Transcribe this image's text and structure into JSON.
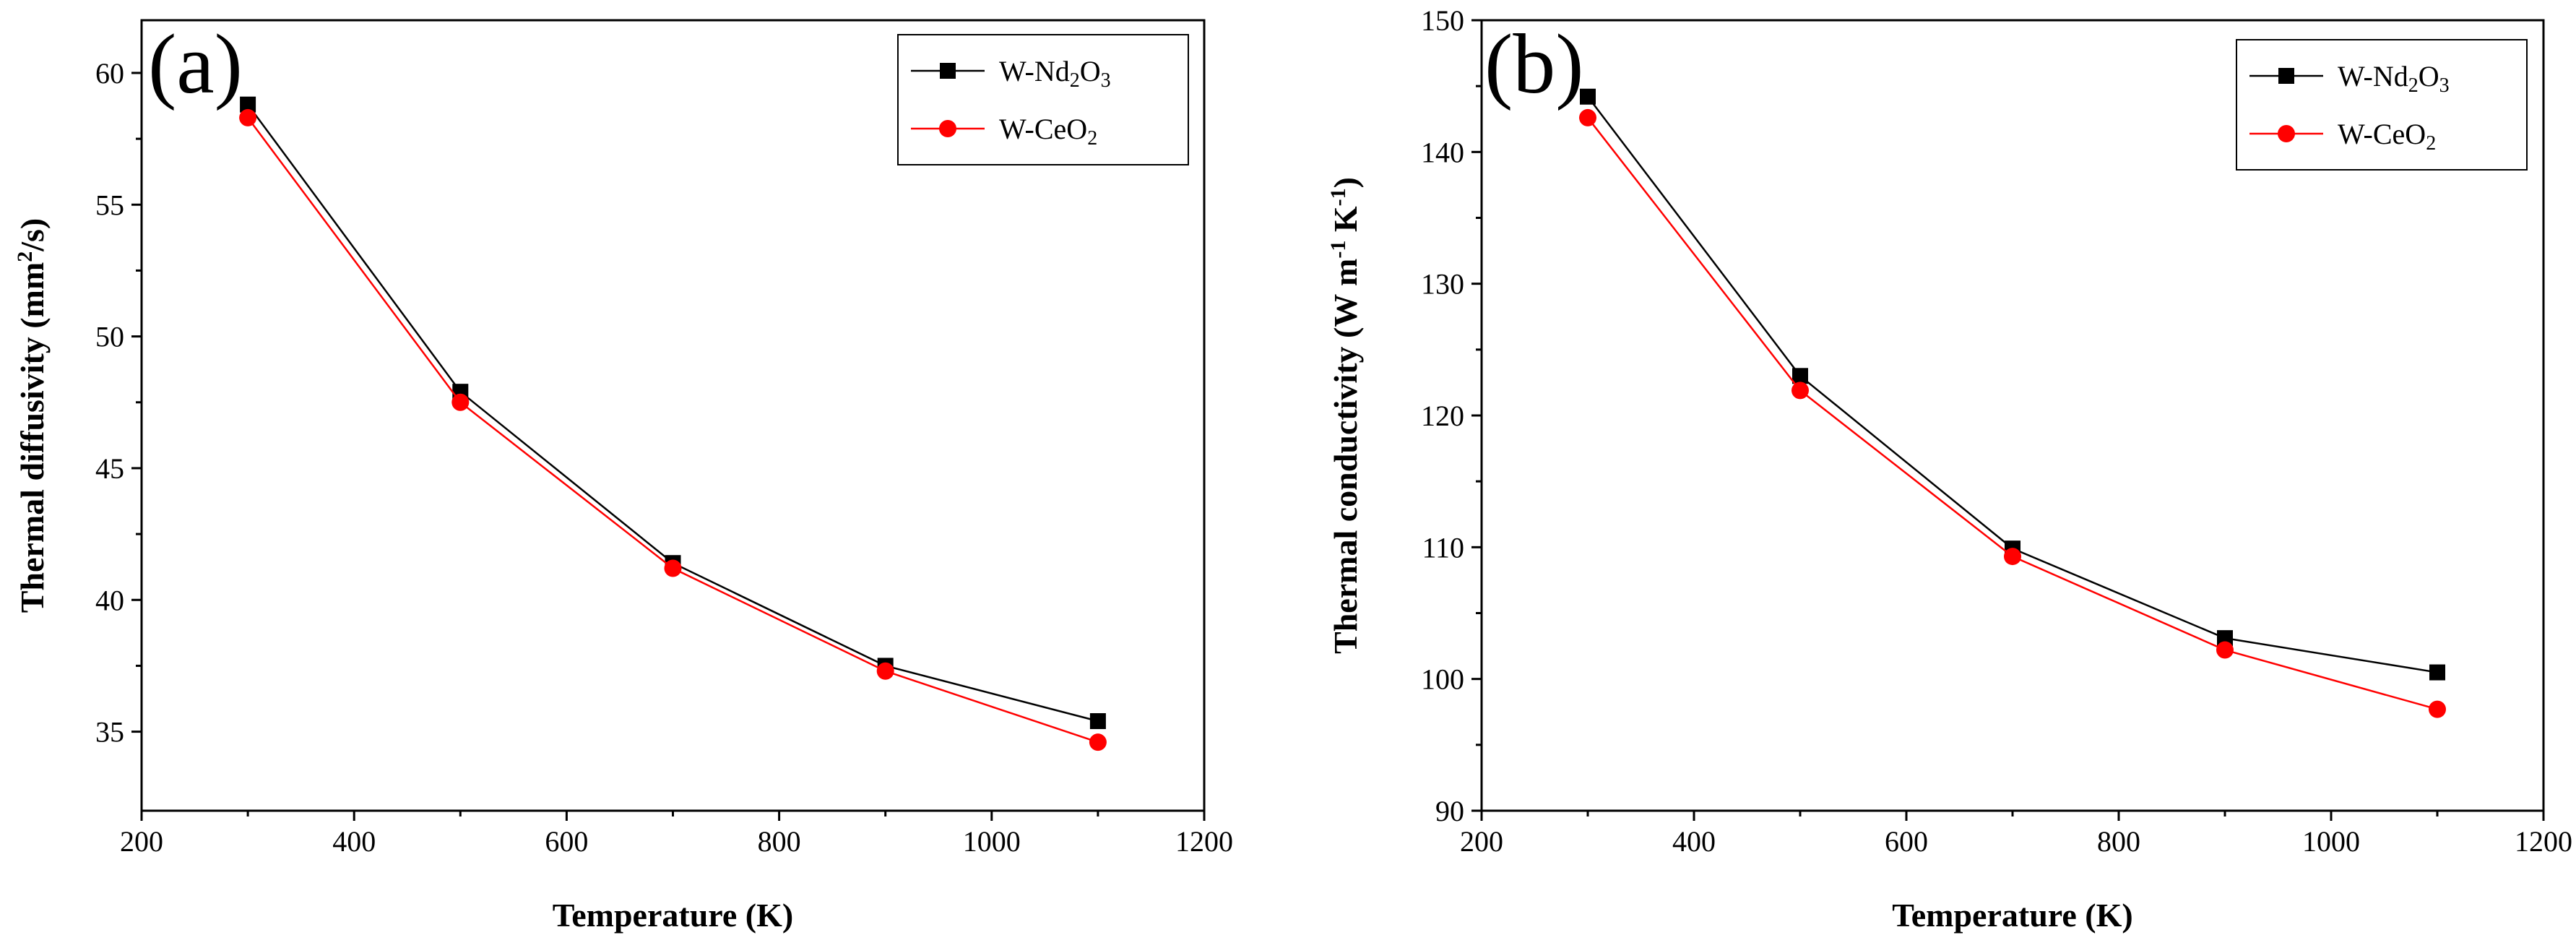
{
  "chart_data": [
    {
      "panel_label": "(a)",
      "type": "line",
      "xlabel": "Temperature (K)",
      "ylabel": "Thermal diffusivity (mm²/s)",
      "xlim": [
        200,
        1200
      ],
      "ylim": [
        32,
        62
      ],
      "xticks": [
        200,
        400,
        600,
        800,
        1000,
        1200
      ],
      "yticks": [
        35,
        40,
        45,
        50,
        55,
        60
      ],
      "x": [
        300,
        500,
        700,
        900,
        1100
      ],
      "series": [
        {
          "name": "W-Nd2O3",
          "marker": "square",
          "color": "#000000",
          "values": [
            58.8,
            47.9,
            41.4,
            37.5,
            35.4
          ]
        },
        {
          "name": "W-CeO2",
          "marker": "circle",
          "color": "#ff0000",
          "values": [
            58.3,
            47.5,
            41.2,
            37.3,
            34.6
          ]
        }
      ],
      "legend_position": "top-right",
      "grid": false
    },
    {
      "panel_label": "(b)",
      "type": "line",
      "xlabel": "Temperature (K)",
      "ylabel": "Thermal conductivity (W m⁻¹ K⁻¹)",
      "xlim": [
        200,
        1200
      ],
      "ylim": [
        90,
        150
      ],
      "xticks": [
        200,
        400,
        600,
        800,
        1000,
        1200
      ],
      "yticks": [
        90,
        100,
        110,
        120,
        130,
        140,
        150
      ],
      "x": [
        300,
        500,
        700,
        900,
        1100
      ],
      "series": [
        {
          "name": "W-Nd2O3",
          "marker": "square",
          "color": "#000000",
          "values": [
            144.2,
            123.0,
            109.9,
            103.1,
            100.5
          ]
        },
        {
          "name": "W-CeO2",
          "marker": "circle",
          "color": "#ff0000",
          "values": [
            142.6,
            121.9,
            109.3,
            102.2,
            97.7
          ]
        }
      ],
      "legend_position": "top-right",
      "grid": false
    }
  ]
}
